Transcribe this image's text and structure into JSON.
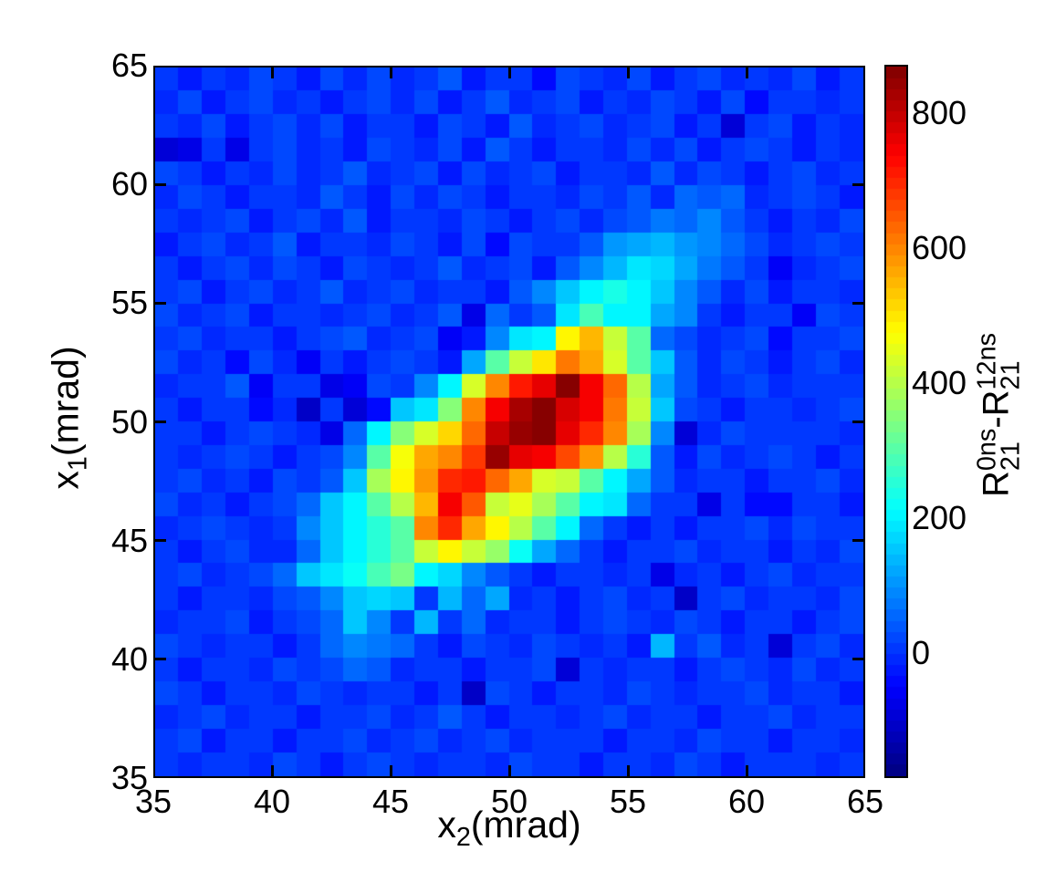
{
  "chart_data": {
    "type": "heatmap",
    "title": "",
    "xlabel": {
      "base": "x",
      "sub": "2",
      "rest": "(mrad)"
    },
    "ylabel": {
      "base": "x",
      "sub": "1",
      "rest": "(mrad)"
    },
    "colorbar_label": {
      "base1": "R",
      "sup1": "0ns",
      "sub1": "21",
      "minus": "-",
      "base2": "R",
      "sup2": "12ns",
      "sub2": "21"
    },
    "x_range": [
      35,
      65
    ],
    "y_range": [
      35,
      65
    ],
    "x_ticks": [
      35,
      40,
      45,
      50,
      55,
      60,
      65
    ],
    "y_ticks": [
      35,
      40,
      45,
      50,
      55,
      60,
      65
    ],
    "colorbar_ticks": [
      0,
      200,
      400,
      600,
      800
    ],
    "value_range": [
      -185,
      872
    ],
    "colormap": "jet",
    "colormap_levels": 64,
    "n_bins": 30,
    "grid": false,
    "legend": "colorbar-right",
    "matrix": [
      [
        5,
        -20,
        10,
        -10,
        25,
        0,
        -30,
        15,
        -5,
        20,
        -15,
        5,
        30,
        -25,
        10,
        0,
        -40,
        20,
        5,
        -10,
        15,
        -30,
        0,
        25,
        -15,
        10,
        -5,
        20,
        -35,
        5
      ],
      [
        -10,
        15,
        -25,
        5,
        20,
        -5,
        10,
        -35,
        0,
        25,
        -10,
        15,
        -20,
        5,
        35,
        -15,
        0,
        20,
        -30,
        10,
        -5,
        25,
        0,
        -20,
        15,
        -40,
        5,
        10,
        -15,
        0
      ],
      [
        0,
        -15,
        20,
        -30,
        5,
        15,
        -10,
        25,
        -20,
        0,
        10,
        -35,
        15,
        5,
        -25,
        30,
        -10,
        0,
        20,
        -15,
        5,
        25,
        -30,
        10,
        -90,
        0,
        15,
        -20,
        5,
        -10
      ],
      [
        -100,
        -80,
        10,
        -85,
        0,
        20,
        -15,
        5,
        -30,
        25,
        0,
        -10,
        15,
        -20,
        30,
        5,
        -25,
        10,
        0,
        -15,
        20,
        -5,
        25,
        -35,
        5,
        15,
        0,
        -20,
        10,
        -5
      ],
      [
        15,
        0,
        -20,
        10,
        -5,
        25,
        -15,
        5,
        30,
        -10,
        0,
        20,
        -30,
        15,
        -5,
        10,
        25,
        -20,
        0,
        5,
        -15,
        30,
        -5,
        20,
        10,
        -25,
        0,
        15,
        -10,
        5
      ],
      [
        -5,
        20,
        0,
        -25,
        10,
        5,
        -15,
        30,
        0,
        -20,
        15,
        -5,
        25,
        0,
        -30,
        10,
        5,
        -15,
        20,
        0,
        40,
        -10,
        55,
        35,
        50,
        -15,
        5,
        20,
        0,
        -25
      ],
      [
        10,
        -15,
        5,
        25,
        -20,
        0,
        15,
        -5,
        30,
        -25,
        10,
        0,
        -15,
        20,
        5,
        -30,
        0,
        25,
        -10,
        15,
        45,
        70,
        60,
        85,
        40,
        0,
        -20,
        10,
        -5,
        15
      ],
      [
        -20,
        5,
        15,
        -10,
        0,
        30,
        -25,
        10,
        5,
        -15,
        20,
        0,
        -30,
        15,
        -45,
        25,
        0,
        10,
        35,
        100,
        120,
        130,
        110,
        90,
        60,
        20,
        -10,
        5,
        15,
        0
      ],
      [
        5,
        -25,
        0,
        20,
        -10,
        15,
        5,
        -30,
        25,
        0,
        -15,
        10,
        30,
        -5,
        0,
        20,
        -20,
        40,
        80,
        130,
        190,
        170,
        120,
        70,
        30,
        10,
        -60,
        -15,
        5,
        20
      ],
      [
        0,
        15,
        -20,
        5,
        25,
        -10,
        0,
        30,
        -15,
        5,
        20,
        -5,
        10,
        0,
        -25,
        35,
        80,
        150,
        210,
        230,
        200,
        150,
        90,
        40,
        -10,
        15,
        -30,
        0,
        10,
        -5
      ],
      [
        15,
        -5,
        0,
        20,
        -30,
        10,
        5,
        -15,
        0,
        25,
        -10,
        0,
        30,
        -70,
        60,
        10,
        40,
        180,
        280,
        200,
        200,
        120,
        80,
        0,
        -25,
        10,
        5,
        -60,
        20,
        0
      ],
      [
        0,
        20,
        -15,
        5,
        10,
        -25,
        0,
        15,
        30,
        -10,
        5,
        20,
        -60,
        -20,
        80,
        180,
        200,
        480,
        550,
        420,
        300,
        60,
        20,
        -15,
        0,
        25,
        -40,
        10,
        0,
        15
      ],
      [
        20,
        -10,
        5,
        -40,
        25,
        -15,
        -55,
        0,
        -30,
        5,
        15,
        0,
        -20,
        120,
        300,
        420,
        500,
        620,
        560,
        430,
        310,
        150,
        40,
        -10,
        20,
        0,
        -25,
        5,
        15,
        -5
      ],
      [
        -15,
        5,
        0,
        30,
        -60,
        10,
        0,
        -80,
        -55,
        15,
        0,
        80,
        200,
        430,
        600,
        720,
        760,
        860,
        740,
        640,
        400,
        120,
        30,
        -10,
        0,
        20,
        -15,
        5,
        0,
        10
      ],
      [
        5,
        -20,
        10,
        0,
        -40,
        -10,
        -110,
        0,
        -90,
        -50,
        150,
        180,
        350,
        600,
        750,
        830,
        860,
        780,
        750,
        620,
        420,
        150,
        20,
        0,
        -25,
        10,
        5,
        -15,
        0,
        20
      ],
      [
        0,
        10,
        -25,
        5,
        15,
        0,
        -10,
        -70,
        60,
        200,
        350,
        430,
        520,
        640,
        800,
        850,
        870,
        760,
        700,
        600,
        380,
        80,
        -90,
        -15,
        25,
        0,
        0,
        10,
        5,
        -10
      ],
      [
        10,
        -15,
        0,
        20,
        5,
        -25,
        0,
        15,
        90,
        300,
        470,
        560,
        600,
        680,
        840,
        760,
        740,
        660,
        580,
        400,
        250,
        30,
        -20,
        20,
        -10,
        5,
        15,
        0,
        -20,
        10
      ],
      [
        0,
        25,
        -10,
        5,
        -20,
        15,
        0,
        30,
        150,
        380,
        480,
        580,
        700,
        720,
        640,
        560,
        430,
        420,
        300,
        200,
        120,
        40,
        -15,
        5,
        0,
        -25,
        10,
        0,
        15,
        -5
      ],
      [
        15,
        -5,
        0,
        -30,
        10,
        25,
        60,
        150,
        200,
        300,
        400,
        550,
        750,
        650,
        420,
        450,
        380,
        300,
        200,
        180,
        60,
        0,
        0,
        -70,
        5,
        -50,
        -40,
        0,
        5,
        -20
      ],
      [
        -10,
        5,
        20,
        0,
        -15,
        0,
        80,
        150,
        200,
        260,
        300,
        600,
        700,
        560,
        480,
        400,
        300,
        200,
        60,
        0,
        -20,
        10,
        -30,
        5,
        0,
        15,
        -5,
        20,
        0,
        10
      ],
      [
        5,
        -20,
        0,
        15,
        -5,
        -10,
        60,
        160,
        200,
        260,
        300,
        420,
        480,
        420,
        370,
        220,
        120,
        60,
        0,
        -25,
        10,
        0,
        20,
        -15,
        5,
        0,
        -30,
        10,
        -5,
        15
      ],
      [
        0,
        15,
        -10,
        5,
        20,
        60,
        150,
        180,
        220,
        280,
        330,
        200,
        170,
        90,
        40,
        0,
        -20,
        10,
        5,
        -15,
        0,
        -80,
        -5,
        10,
        -30,
        0,
        15,
        -10,
        5,
        0
      ],
      [
        10,
        -25,
        5,
        0,
        -15,
        20,
        40,
        80,
        160,
        170,
        150,
        0,
        140,
        60,
        120,
        -10,
        5,
        -20,
        0,
        15,
        -5,
        10,
        -110,
        0,
        20,
        -15,
        5,
        0,
        -10,
        25
      ],
      [
        -5,
        10,
        0,
        20,
        -20,
        5,
        15,
        60,
        150,
        90,
        10,
        130,
        0,
        50,
        -15,
        10,
        0,
        -25,
        5,
        20,
        0,
        -10,
        15,
        5,
        -20,
        0,
        10,
        -35,
        0,
        15
      ],
      [
        20,
        0,
        -15,
        5,
        10,
        -30,
        0,
        50,
        90,
        70,
        50,
        0,
        -20,
        15,
        5,
        -10,
        20,
        0,
        -15,
        5,
        -25,
        130,
        0,
        30,
        -10,
        5,
        -95,
        0,
        15,
        -5
      ],
      [
        0,
        -20,
        10,
        5,
        -10,
        15,
        0,
        25,
        60,
        40,
        -15,
        5,
        0,
        -25,
        10,
        0,
        20,
        -100,
        5,
        -15,
        0,
        10,
        -30,
        5,
        20,
        0,
        -10,
        15,
        -5,
        0
      ],
      [
        15,
        5,
        -25,
        0,
        10,
        -5,
        20,
        0,
        -15,
        10,
        5,
        -30,
        0,
        -110,
        15,
        0,
        -20,
        5,
        10,
        -5,
        25,
        0,
        -15,
        5,
        0,
        20,
        -10,
        0,
        5,
        -20
      ],
      [
        -10,
        0,
        20,
        -15,
        5,
        0,
        -25,
        10,
        0,
        15,
        -5,
        0,
        30,
        5,
        -20,
        0,
        10,
        -15,
        0,
        25,
        -5,
        10,
        0,
        -30,
        5,
        0,
        15,
        -10,
        0,
        5
      ],
      [
        5,
        15,
        -20,
        0,
        10,
        -30,
        5,
        0,
        20,
        -10,
        0,
        15,
        -5,
        0,
        25,
        -15,
        5,
        10,
        0,
        -20,
        5,
        0,
        -10,
        15,
        0,
        5,
        -25,
        0,
        10,
        -5
      ],
      [
        0,
        -15,
        5,
        10,
        -5,
        20,
        0,
        -25,
        5,
        15,
        0,
        -10,
        5,
        0,
        -15,
        25,
        0,
        5,
        -30,
        0,
        10,
        -5,
        15,
        0,
        -20,
        5,
        0,
        10,
        -5,
        0
      ]
    ]
  },
  "colors": {
    "background": "#ffffff",
    "axis": "#000000",
    "text": "#000000"
  }
}
